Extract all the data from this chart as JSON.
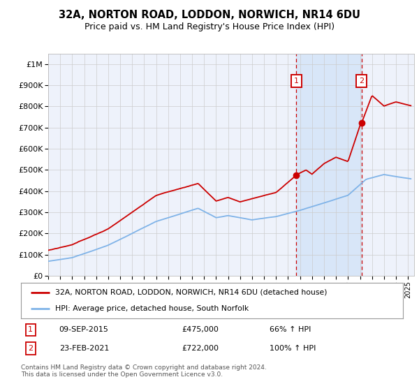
{
  "title": "32A, NORTON ROAD, LODDON, NORWICH, NR14 6DU",
  "subtitle": "Price paid vs. HM Land Registry's House Price Index (HPI)",
  "legend_line1": "32A, NORTON ROAD, LODDON, NORWICH, NR14 6DU (detached house)",
  "legend_line2": "HPI: Average price, detached house, South Norfolk",
  "annotation1_date": "09-SEP-2015",
  "annotation1_price": "£475,000",
  "annotation1_pct": "66% ↑ HPI",
  "annotation1_year": 2015.7,
  "annotation1_value": 475000,
  "annotation2_date": "23-FEB-2021",
  "annotation2_price": "£722,000",
  "annotation2_pct": "100% ↑ HPI",
  "annotation2_year": 2021.14,
  "annotation2_value": 722000,
  "footer": "Contains HM Land Registry data © Crown copyright and database right 2024.\nThis data is licensed under the Open Government Licence v3.0.",
  "red_color": "#cc0000",
  "blue_color": "#7fb3e8",
  "background_color": "#ffffff",
  "plot_bg_color": "#eef2fb",
  "grid_color": "#cccccc",
  "annotation_box_color": "#cc0000",
  "dashed_line_color": "#cc0000",
  "shaded_region_color": "#d8e6f8",
  "ylim_min": 0,
  "ylim_max": 1050000,
  "xmin": 1995,
  "xmax": 2025.5
}
